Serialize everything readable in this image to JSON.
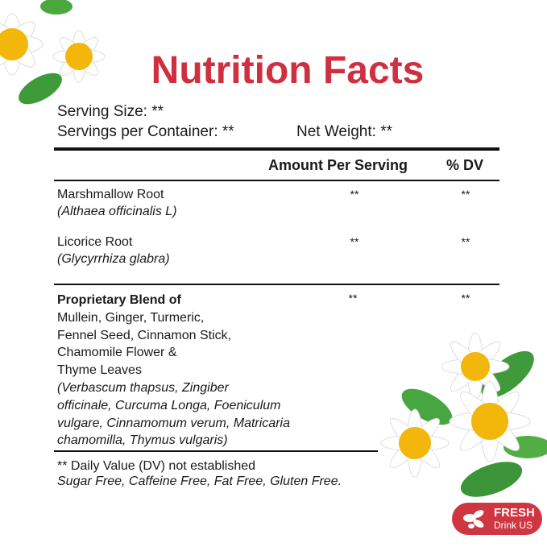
{
  "title": "Nutrition Facts",
  "serving_size": "Serving Size: **",
  "servings_per_container": "Servings per Container: **",
  "net_weight": "Net Weight: **",
  "header": {
    "amount": "Amount Per Serving",
    "dv": "% DV"
  },
  "rows": [
    {
      "name": "Marshmallow Root",
      "latin": "(Althaea officinalis L)",
      "amount": "**",
      "dv": "**"
    },
    {
      "name": "Licorice Root",
      "latin": "(Glycyrrhiza glabra)",
      "amount": "**",
      "dv": "**"
    }
  ],
  "blend": {
    "title": "Proprietary Blend of",
    "lines": [
      "Mullein, Ginger, Turmeric,",
      "Fennel Seed, Cinnamon Stick,",
      "Chamomile Flower &",
      "Thyme Leaves"
    ],
    "latin": [
      "(Verbascum thapsus, Zingiber",
      "officinale, Curcuma Longa, Foeniculum",
      "vulgare, Cinnamomum verum, Matricaria",
      "chamomilla, Thymus vulgaris)"
    ],
    "amount": "**",
    "dv": "**"
  },
  "footnote": "** Daily Value (DV) not established",
  "claims": "Sugar Free, Caffeine Free, Fat Free, Gluten Free.",
  "badge": {
    "line1": "FRESH",
    "line2": "Drink US"
  },
  "colors": {
    "title": "#cf3040",
    "badge": "#d0363f"
  }
}
